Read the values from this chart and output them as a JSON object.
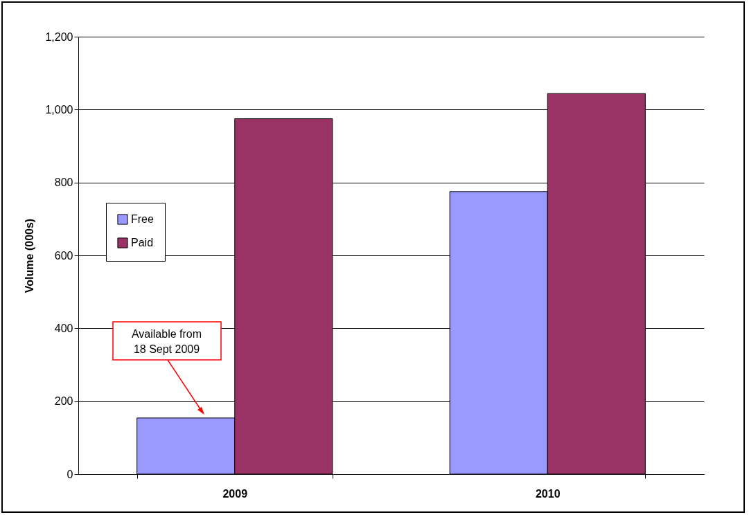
{
  "chart_data": {
    "type": "bar",
    "ylabel": "Volume (000s)",
    "categories": [
      "2009",
      "2010"
    ],
    "series": [
      {
        "name": "Free",
        "color": "#9999ff",
        "values": [
          154,
          775
        ]
      },
      {
        "name": "Paid",
        "color": "#993366",
        "values": [
          975,
          1044
        ]
      }
    ],
    "ylim": [
      0,
      1200
    ],
    "yticks": [
      0,
      200,
      400,
      600,
      800,
      {
        "value": 1000,
        "label": "1,000"
      },
      {
        "value": 1200,
        "label": "1,200"
      }
    ],
    "grid": "y",
    "legend": "left",
    "annotations": [
      "Available from\n18 Sept 2009"
    ]
  }
}
